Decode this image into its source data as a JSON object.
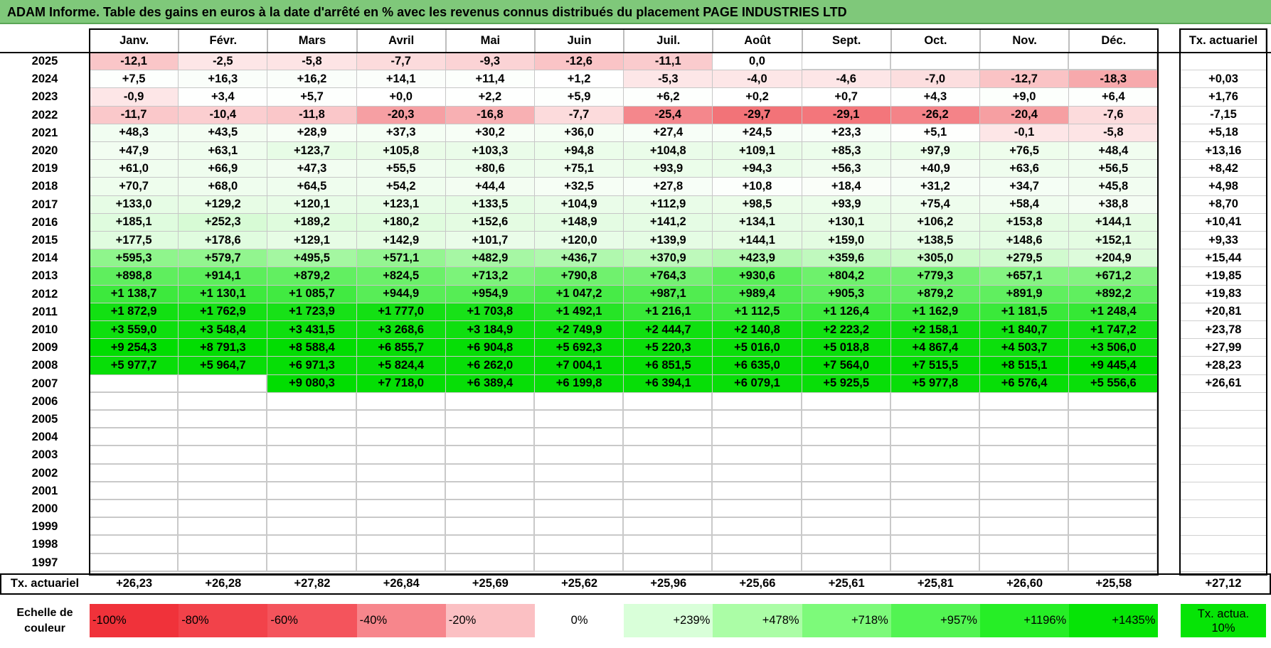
{
  "title": "ADAM Informe. Table des gains en euros à la date d'arrêté en % avec les revenus connus distribués du placement PAGE INDUSTRIES LTD",
  "months": [
    "Janv.",
    "Févr.",
    "Mars",
    "Avril",
    "Mai",
    "Juin",
    "Juil.",
    "Août",
    "Sept.",
    "Oct.",
    "Nov.",
    "Déc."
  ],
  "annual_header": "Tx. actuariel",
  "rows": [
    {
      "year": "2025",
      "values": [
        "-12,1",
        "-2,5",
        "-5,8",
        "-7,7",
        "-9,3",
        "-12,6",
        "-11,1",
        "0,0",
        "",
        "",
        "",
        ""
      ],
      "annual": ""
    },
    {
      "year": "2024",
      "values": [
        "+7,5",
        "+16,3",
        "+16,2",
        "+14,1",
        "+11,4",
        "+1,2",
        "-5,3",
        "-4,0",
        "-4,6",
        "-7,0",
        "-12,7",
        "-18,3"
      ],
      "annual": "+0,03"
    },
    {
      "year": "2023",
      "values": [
        "-0,9",
        "+3,4",
        "+5,7",
        "+0,0",
        "+2,2",
        "+5,9",
        "+6,2",
        "+0,2",
        "+0,7",
        "+4,3",
        "+9,0",
        "+6,4"
      ],
      "annual": "+1,76"
    },
    {
      "year": "2022",
      "values": [
        "-11,7",
        "-10,4",
        "-11,8",
        "-20,3",
        "-16,8",
        "-7,7",
        "-25,4",
        "-29,7",
        "-29,1",
        "-26,2",
        "-20,4",
        "-7,6"
      ],
      "annual": "-7,15"
    },
    {
      "year": "2021",
      "values": [
        "+48,3",
        "+43,5",
        "+28,9",
        "+37,3",
        "+30,2",
        "+36,0",
        "+27,4",
        "+24,5",
        "+23,3",
        "+5,1",
        "-0,1",
        "-5,8"
      ],
      "annual": "+5,18"
    },
    {
      "year": "2020",
      "values": [
        "+47,9",
        "+63,1",
        "+123,7",
        "+105,8",
        "+103,3",
        "+94,8",
        "+104,8",
        "+109,1",
        "+85,3",
        "+97,9",
        "+76,5",
        "+48,4"
      ],
      "annual": "+13,16"
    },
    {
      "year": "2019",
      "values": [
        "+61,0",
        "+66,9",
        "+47,3",
        "+55,5",
        "+80,6",
        "+75,1",
        "+93,9",
        "+94,3",
        "+56,3",
        "+40,9",
        "+63,6",
        "+56,5"
      ],
      "annual": "+8,42"
    },
    {
      "year": "2018",
      "values": [
        "+70,7",
        "+68,0",
        "+64,5",
        "+54,2",
        "+44,4",
        "+32,5",
        "+27,8",
        "+10,8",
        "+18,4",
        "+31,2",
        "+34,7",
        "+45,8"
      ],
      "annual": "+4,98"
    },
    {
      "year": "2017",
      "values": [
        "+133,0",
        "+129,2",
        "+120,1",
        "+123,1",
        "+133,5",
        "+104,9",
        "+112,9",
        "+98,5",
        "+93,9",
        "+75,4",
        "+58,4",
        "+38,8"
      ],
      "annual": "+8,70"
    },
    {
      "year": "2016",
      "values": [
        "+185,1",
        "+252,3",
        "+189,2",
        "+180,2",
        "+152,6",
        "+148,9",
        "+141,2",
        "+134,1",
        "+130,1",
        "+106,2",
        "+153,8",
        "+144,1"
      ],
      "annual": "+10,41"
    },
    {
      "year": "2015",
      "values": [
        "+177,5",
        "+178,6",
        "+129,1",
        "+142,9",
        "+101,7",
        "+120,0",
        "+139,9",
        "+144,1",
        "+159,0",
        "+138,5",
        "+148,6",
        "+152,1"
      ],
      "annual": "+9,33"
    },
    {
      "year": "2014",
      "values": [
        "+595,3",
        "+579,7",
        "+495,5",
        "+571,1",
        "+482,9",
        "+436,7",
        "+370,9",
        "+423,9",
        "+359,6",
        "+305,0",
        "+279,5",
        "+204,9"
      ],
      "annual": "+15,44"
    },
    {
      "year": "2013",
      "values": [
        "+898,8",
        "+914,1",
        "+879,2",
        "+824,5",
        "+713,2",
        "+790,8",
        "+764,3",
        "+930,6",
        "+804,2",
        "+779,3",
        "+657,1",
        "+671,2"
      ],
      "annual": "+19,85"
    },
    {
      "year": "2012",
      "values": [
        "+1 138,7",
        "+1 130,1",
        "+1 085,7",
        "+944,9",
        "+954,9",
        "+1 047,2",
        "+987,1",
        "+989,4",
        "+905,3",
        "+879,2",
        "+891,9",
        "+892,2"
      ],
      "annual": "+19,83"
    },
    {
      "year": "2011",
      "values": [
        "+1 872,9",
        "+1 762,9",
        "+1 723,9",
        "+1 777,0",
        "+1 703,8",
        "+1 492,1",
        "+1 216,1",
        "+1 112,5",
        "+1 126,4",
        "+1 162,9",
        "+1 181,5",
        "+1 248,4"
      ],
      "annual": "+20,81"
    },
    {
      "year": "2010",
      "values": [
        "+3 559,0",
        "+3 548,4",
        "+3 431,5",
        "+3 268,6",
        "+3 184,9",
        "+2 749,9",
        "+2 444,7",
        "+2 140,8",
        "+2 223,2",
        "+2 158,1",
        "+1 840,7",
        "+1 747,2"
      ],
      "annual": "+23,78"
    },
    {
      "year": "2009",
      "values": [
        "+9 254,3",
        "+8 791,3",
        "+8 588,4",
        "+6 855,7",
        "+6 904,8",
        "+5 692,3",
        "+5 220,3",
        "+5 016,0",
        "+5 018,8",
        "+4 867,4",
        "+4 503,7",
        "+3 506,0"
      ],
      "annual": "+27,99"
    },
    {
      "year": "2008",
      "values": [
        "+5 977,7",
        "+5 964,7",
        "+6 971,3",
        "+5 824,4",
        "+6 262,0",
        "+7 004,1",
        "+6 851,5",
        "+6 635,0",
        "+7 564,0",
        "+7 515,5",
        "+8 515,1",
        "+9 445,4"
      ],
      "annual": "+28,23"
    },
    {
      "year": "2007",
      "values": [
        "",
        "",
        "+9 080,3",
        "+7 718,0",
        "+6 389,4",
        "+6 199,8",
        "+6 394,1",
        "+6 079,1",
        "+5 925,5",
        "+5 977,8",
        "+6 576,4",
        "+5 556,6"
      ],
      "annual": "+26,61"
    },
    {
      "year": "2006",
      "values": [
        "",
        "",
        "",
        "",
        "",
        "",
        "",
        "",
        "",
        "",
        "",
        ""
      ],
      "annual": ""
    },
    {
      "year": "2005",
      "values": [
        "",
        "",
        "",
        "",
        "",
        "",
        "",
        "",
        "",
        "",
        "",
        ""
      ],
      "annual": ""
    },
    {
      "year": "2004",
      "values": [
        "",
        "",
        "",
        "",
        "",
        "",
        "",
        "",
        "",
        "",
        "",
        ""
      ],
      "annual": ""
    },
    {
      "year": "2003",
      "values": [
        "",
        "",
        "",
        "",
        "",
        "",
        "",
        "",
        "",
        "",
        "",
        ""
      ],
      "annual": ""
    },
    {
      "year": "2002",
      "values": [
        "",
        "",
        "",
        "",
        "",
        "",
        "",
        "",
        "",
        "",
        "",
        ""
      ],
      "annual": ""
    },
    {
      "year": "2001",
      "values": [
        "",
        "",
        "",
        "",
        "",
        "",
        "",
        "",
        "",
        "",
        "",
        ""
      ],
      "annual": ""
    },
    {
      "year": "2000",
      "values": [
        "",
        "",
        "",
        "",
        "",
        "",
        "",
        "",
        "",
        "",
        "",
        ""
      ],
      "annual": ""
    },
    {
      "year": "1999",
      "values": [
        "",
        "",
        "",
        "",
        "",
        "",
        "",
        "",
        "",
        "",
        "",
        ""
      ],
      "annual": ""
    },
    {
      "year": "1998",
      "values": [
        "",
        "",
        "",
        "",
        "",
        "",
        "",
        "",
        "",
        "",
        "",
        ""
      ],
      "annual": ""
    },
    {
      "year": "1997",
      "values": [
        "",
        "",
        "",
        "",
        "",
        "",
        "",
        "",
        "",
        "",
        "",
        ""
      ],
      "annual": ""
    }
  ],
  "footer": {
    "label": "Tx. actuariel",
    "values": [
      "+26,23",
      "+26,28",
      "+27,82",
      "+26,84",
      "+25,69",
      "+25,62",
      "+25,96",
      "+25,66",
      "+25,61",
      "+25,81",
      "+26,60",
      "+25,58"
    ],
    "annual": "+27,12"
  },
  "legend": {
    "label": "Echelle de couleur",
    "items": [
      "-100%",
      "-80%",
      "-60%",
      "-40%",
      "-20%",
      "0%",
      "+239%",
      "+478%",
      "+718%",
      "+957%",
      "+1196%",
      "+1435%"
    ],
    "colors": [
      "#f0323a",
      "#f2424a",
      "#f4545c",
      "#f7868c",
      "#fbc0c3",
      "#ffffff",
      "#d9ffd9",
      "#abfda6",
      "#7dfa7a",
      "#52f452",
      "#26ee26",
      "#06e406"
    ],
    "annual_label": "Tx. actua. 10%",
    "annual_color": "#06e406"
  }
}
